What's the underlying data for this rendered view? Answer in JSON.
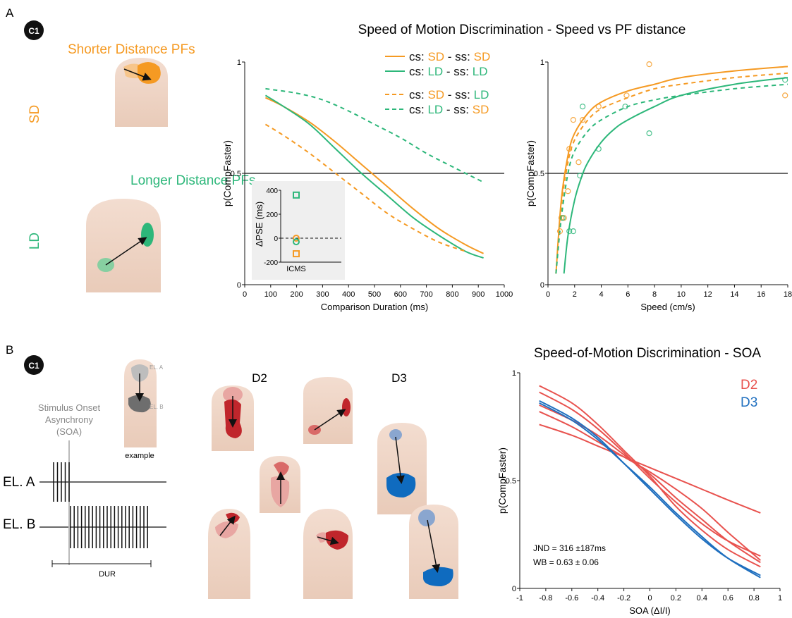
{
  "panels": {
    "A": {
      "letter": "A",
      "badge": "C1",
      "sd_title": "Shorter Distance PFs",
      "ld_title": "Longer Distance PFs",
      "sd_label": "SD",
      "ld_label": "LD",
      "main_title": "Speed of Motion Discrimination - Speed vs PF distance",
      "legend": [
        {
          "prefix": "cs: ",
          "cs": "SD",
          "mid": " - ss: ",
          "ss": "SD"
        },
        {
          "prefix": "cs: ",
          "cs": "LD",
          "mid": " - ss: ",
          "ss": "LD"
        },
        {
          "prefix": "cs: ",
          "cs": "SD",
          "mid": " - ss: ",
          "ss": "LD"
        },
        {
          "prefix": "cs: ",
          "cs": "LD",
          "mid": " - ss: ",
          "ss": "SD"
        }
      ],
      "inset": {
        "ylabel": "ΔPSE (ms)",
        "xlabel": "ICMS"
      }
    },
    "B": {
      "letter": "B",
      "badge": "C1",
      "soa_label_lines": [
        "Stimulus Onset",
        "Asynchrony",
        "(SOA)"
      ],
      "el_a": "EL. A",
      "el_b": "EL. B",
      "dur": "DUR",
      "example": "example",
      "example_el_a": "EL. A",
      "example_el_b": "EL. B",
      "d2": "D2",
      "d3": "D3",
      "title": "Speed-of-Motion Discrimination - SOA",
      "stats_jnd": "JND = 316 ±187ms",
      "stats_wb": "WB = 0.63 ± 0.06"
    }
  },
  "colors": {
    "sd": "#f59a23",
    "ld": "#2db77a",
    "d2": "#e8524e",
    "d3": "#1f6fbf",
    "ref": "#000000"
  },
  "chart_data": [
    {
      "id": "duration",
      "type": "line",
      "xlabel": "Comparison Duration (ms)",
      "ylabel": "p(CompFaster)",
      "xlim": [
        0,
        1000
      ],
      "ylim": [
        0,
        1
      ],
      "xticks": [
        0,
        100,
        200,
        300,
        400,
        500,
        600,
        700,
        800,
        900,
        1000
      ],
      "yticks": [
        0,
        0.5,
        1
      ],
      "ytick_labels": [
        "0",
        "0.5",
        "1"
      ],
      "reference_y": 0.5,
      "series": [
        {
          "name": "cs: SD - ss: SD",
          "color": "sd",
          "dash": false,
          "x": [
            80,
            150,
            250,
            350,
            450,
            550,
            650,
            750,
            850,
            920
          ],
          "y": [
            0.84,
            0.8,
            0.73,
            0.64,
            0.54,
            0.44,
            0.34,
            0.25,
            0.18,
            0.14
          ]
        },
        {
          "name": "cs: LD - ss: LD",
          "color": "ld",
          "dash": false,
          "x": [
            80,
            150,
            250,
            350,
            450,
            550,
            650,
            750,
            850,
            920
          ],
          "y": [
            0.85,
            0.8,
            0.72,
            0.61,
            0.5,
            0.4,
            0.3,
            0.22,
            0.15,
            0.12
          ]
        },
        {
          "name": "cs: SD - ss: LD",
          "color": "sd",
          "dash": true,
          "x": [
            80,
            150,
            250,
            350,
            450,
            550,
            650,
            750,
            850
          ],
          "y": [
            0.72,
            0.67,
            0.59,
            0.5,
            0.41,
            0.32,
            0.25,
            0.19,
            0.15
          ]
        },
        {
          "name": "cs: LD - ss: SD",
          "color": "ld",
          "dash": true,
          "x": [
            80,
            200,
            300,
            400,
            500,
            600,
            700,
            800,
            920
          ],
          "y": [
            0.88,
            0.86,
            0.83,
            0.78,
            0.72,
            0.66,
            0.59,
            0.53,
            0.46
          ]
        }
      ],
      "inset": {
        "type": "scatter",
        "xlabel": "ICMS",
        "ylabel": "ΔPSE (ms)",
        "ylim": [
          -200,
          400
        ],
        "yticks": [
          -200,
          0,
          200,
          400
        ],
        "reference_y": 0,
        "points": [
          {
            "y": 360,
            "color": "ld",
            "marker": "square"
          },
          {
            "y": 0,
            "color": "sd",
            "marker": "circle"
          },
          {
            "y": -30,
            "color": "ld",
            "marker": "circle"
          },
          {
            "y": -130,
            "color": "sd",
            "marker": "square"
          }
        ]
      }
    },
    {
      "id": "speed",
      "type": "line",
      "xlabel": "Speed (cm/s)",
      "ylabel": "p(CompFaster)",
      "xlim": [
        0,
        18
      ],
      "ylim": [
        0,
        1
      ],
      "xticks": [
        0,
        2,
        4,
        6,
        8,
        10,
        12,
        14,
        16,
        18
      ],
      "yticks": [
        0,
        0.5,
        1
      ],
      "ytick_labels": [
        "0",
        "0.5",
        "1"
      ],
      "reference_y": 0.5,
      "series": [
        {
          "name": "cs: SD - ss: SD",
          "color": "sd",
          "dash": false,
          "x": [
            0.6,
            1,
            1.5,
            2,
            3,
            4,
            6,
            8,
            10,
            14,
            18
          ],
          "y": [
            0.05,
            0.38,
            0.58,
            0.68,
            0.77,
            0.82,
            0.87,
            0.9,
            0.93,
            0.96,
            0.98
          ]
        },
        {
          "name": "cs: SD - ss: LD",
          "color": "sd",
          "dash": true,
          "x": [
            0.6,
            1,
            1.5,
            2,
            3,
            4,
            6,
            8,
            10,
            14,
            18
          ],
          "y": [
            0.05,
            0.35,
            0.55,
            0.65,
            0.74,
            0.79,
            0.84,
            0.88,
            0.9,
            0.93,
            0.95
          ]
        },
        {
          "name": "cs: LD - ss: SD",
          "color": "ld",
          "dash": true,
          "x": [
            0.6,
            1,
            1.5,
            2,
            3,
            4,
            6,
            8,
            10,
            14,
            18
          ],
          "y": [
            0.05,
            0.3,
            0.5,
            0.6,
            0.69,
            0.74,
            0.8,
            0.83,
            0.85,
            0.88,
            0.9
          ]
        },
        {
          "name": "cs: LD - ss: LD",
          "color": "ld",
          "dash": false,
          "x": [
            1.2,
            1.5,
            2,
            2.5,
            3,
            4,
            5,
            6,
            8,
            10,
            14,
            18
          ],
          "y": [
            0.05,
            0.22,
            0.38,
            0.48,
            0.55,
            0.64,
            0.7,
            0.74,
            0.8,
            0.85,
            0.9,
            0.93
          ]
        }
      ],
      "points": [
        {
          "x": 0.9,
          "y": 0.24,
          "color": "sd"
        },
        {
          "x": 1.0,
          "y": 0.3,
          "color": "sd"
        },
        {
          "x": 1.2,
          "y": 0.3,
          "color": "sd"
        },
        {
          "x": 1.6,
          "y": 0.61,
          "color": "sd"
        },
        {
          "x": 1.9,
          "y": 0.74,
          "color": "sd"
        },
        {
          "x": 2.6,
          "y": 0.74,
          "color": "sd"
        },
        {
          "x": 3.8,
          "y": 0.8,
          "color": "sd"
        },
        {
          "x": 7.6,
          "y": 0.99,
          "color": "sd"
        },
        {
          "x": 17.8,
          "y": 0.85,
          "color": "sd"
        },
        {
          "x": 1.5,
          "y": 0.42,
          "color": "sd"
        },
        {
          "x": 2.3,
          "y": 0.55,
          "color": "sd"
        },
        {
          "x": 5.9,
          "y": 0.85,
          "color": "sd"
        },
        {
          "x": 1.1,
          "y": 0.3,
          "color": "ld"
        },
        {
          "x": 1.6,
          "y": 0.24,
          "color": "ld"
        },
        {
          "x": 1.9,
          "y": 0.24,
          "color": "ld"
        },
        {
          "x": 2.4,
          "y": 0.49,
          "color": "ld"
        },
        {
          "x": 2.6,
          "y": 0.8,
          "color": "ld"
        },
        {
          "x": 3.8,
          "y": 0.61,
          "color": "ld"
        },
        {
          "x": 5.8,
          "y": 0.8,
          "color": "ld"
        },
        {
          "x": 7.6,
          "y": 0.68,
          "color": "ld"
        },
        {
          "x": 17.8,
          "y": 0.92,
          "color": "ld"
        }
      ]
    },
    {
      "id": "soa",
      "type": "line",
      "xlabel": "SOA (ΔI/I)",
      "ylabel": "p(CompFaster)",
      "xlim": [
        -1,
        1
      ],
      "ylim": [
        0,
        1
      ],
      "xticks": [
        -1,
        -0.8,
        -0.6,
        -0.4,
        -0.2,
        0,
        0.2,
        0.4,
        0.6,
        0.8,
        1
      ],
      "yticks": [
        0,
        0.5,
        1
      ],
      "ytick_labels": [
        "0",
        "0.5",
        "1"
      ],
      "legend": [
        "D2",
        "D3"
      ],
      "series": [
        {
          "group": "D2",
          "color": "d2",
          "x": [
            -0.85,
            -0.6,
            -0.4,
            -0.2,
            0,
            0.2,
            0.4,
            0.6,
            0.85
          ],
          "y": [
            0.94,
            0.86,
            0.76,
            0.64,
            0.52,
            0.38,
            0.27,
            0.18,
            0.1
          ]
        },
        {
          "group": "D2",
          "color": "d2",
          "x": [
            -0.85,
            -0.6,
            -0.4,
            -0.2,
            0,
            0.2,
            0.4,
            0.6,
            0.85
          ],
          "y": [
            0.91,
            0.83,
            0.74,
            0.63,
            0.51,
            0.4,
            0.3,
            0.22,
            0.15
          ]
        },
        {
          "group": "D2",
          "color": "d2",
          "x": [
            -0.85,
            -0.6,
            -0.4,
            -0.2,
            0,
            0.2,
            0.4,
            0.6,
            0.85
          ],
          "y": [
            0.85,
            0.78,
            0.71,
            0.62,
            0.53,
            0.42,
            0.32,
            0.22,
            0.12
          ]
        },
        {
          "group": "D2",
          "color": "d2",
          "x": [
            -0.85,
            -0.6,
            -0.4,
            -0.2,
            0,
            0.2,
            0.4,
            0.6,
            0.85
          ],
          "y": [
            0.82,
            0.75,
            0.68,
            0.61,
            0.54,
            0.46,
            0.37,
            0.26,
            0.13
          ]
        },
        {
          "group": "D2",
          "color": "d2",
          "x": [
            -0.85,
            -0.6,
            -0.4,
            -0.2,
            0,
            0.2,
            0.4,
            0.6,
            0.85
          ],
          "y": [
            0.76,
            0.71,
            0.66,
            0.61,
            0.56,
            0.51,
            0.46,
            0.41,
            0.35
          ]
        },
        {
          "group": "D3",
          "color": "d3",
          "x": [
            -0.85,
            -0.6,
            -0.4,
            -0.2,
            0,
            0.2,
            0.4,
            0.6,
            0.85
          ],
          "y": [
            0.87,
            0.79,
            0.7,
            0.58,
            0.46,
            0.34,
            0.23,
            0.14,
            0.06
          ]
        },
        {
          "group": "D3",
          "color": "d3",
          "x": [
            -0.85,
            -0.6,
            -0.4,
            -0.2,
            0,
            0.2,
            0.4,
            0.6,
            0.85
          ],
          "y": [
            0.86,
            0.78,
            0.69,
            0.58,
            0.47,
            0.35,
            0.24,
            0.14,
            0.05
          ]
        }
      ]
    }
  ]
}
